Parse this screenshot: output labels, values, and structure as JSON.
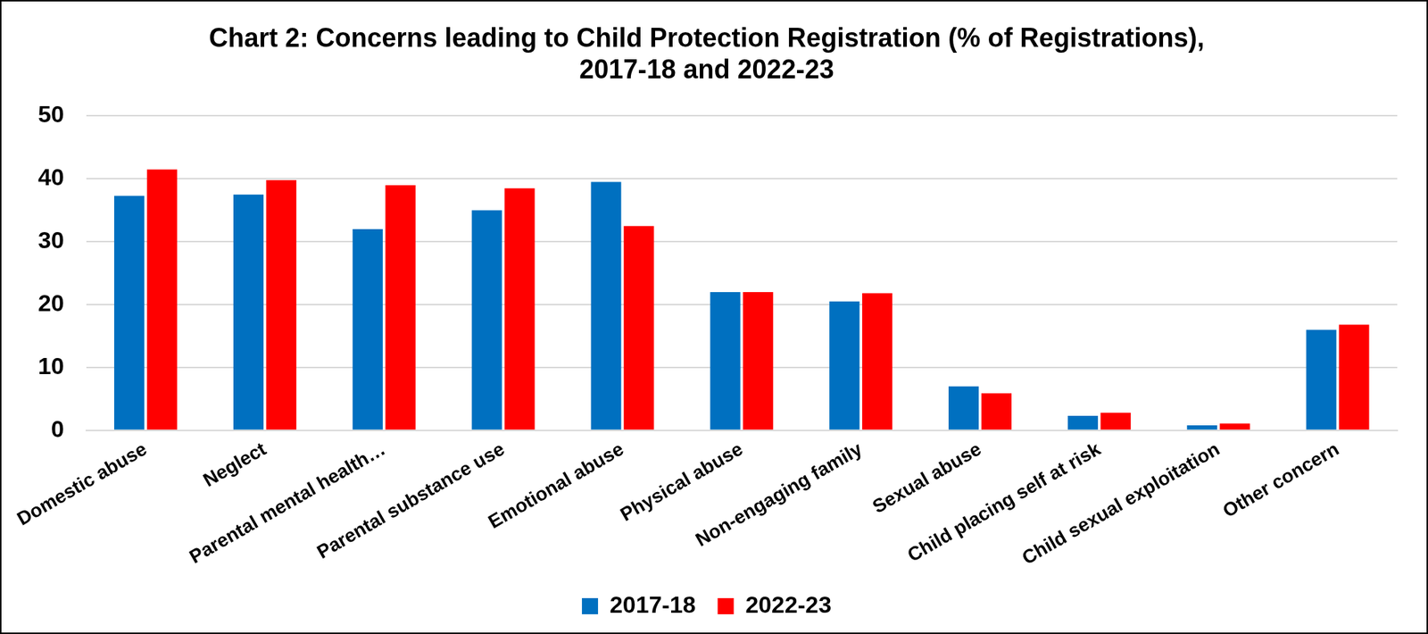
{
  "chart_data": {
    "type": "bar",
    "title": [
      "Chart 2: Concerns leading to Child Protection Registration (% of Registrations),",
      "2017-18 and 2022-23"
    ],
    "categories": [
      "Domestic abuse",
      "Neglect",
      "Parental mental health…",
      "Parental substance use",
      "Emotional abuse",
      "Physical abuse",
      "Non-engaging family",
      "Sexual abuse",
      "Child placing self at risk",
      "Child sexual exploitation",
      "Other concern"
    ],
    "series": [
      {
        "name": "2017-18",
        "color": "#0070C0",
        "values": [
          37.3,
          37.5,
          32,
          35,
          39.5,
          22,
          20.5,
          7,
          2.3,
          0.8,
          16
        ]
      },
      {
        "name": "2022-23",
        "color": "#FF0000",
        "values": [
          41.5,
          39.8,
          39,
          38.5,
          32.5,
          22,
          21.8,
          5.9,
          2.8,
          1.1,
          16.8
        ]
      }
    ],
    "ylim": [
      0,
      50
    ],
    "yticks": [
      0,
      10,
      20,
      30,
      40,
      50
    ],
    "grid": true,
    "legend": "bottom"
  }
}
